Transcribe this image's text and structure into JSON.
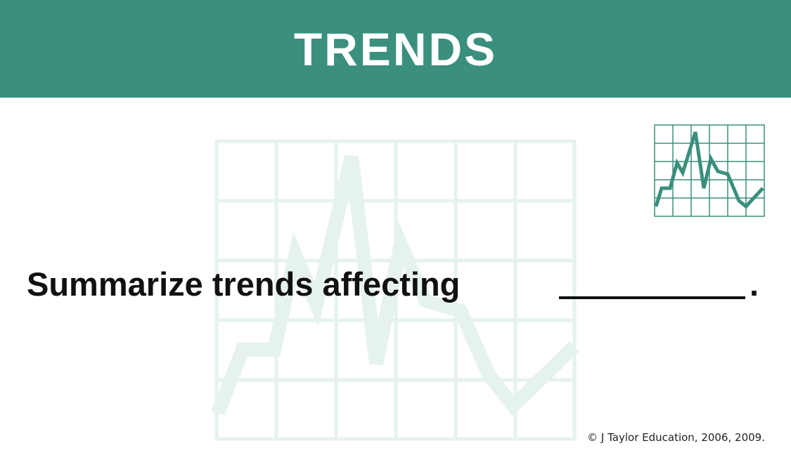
{
  "header": {
    "title": "TRENDS",
    "background_color": "#3a8f7d",
    "text_color": "#ffffff"
  },
  "decorations": {
    "watermark_icon": "line-chart-watermark-icon",
    "watermark_color": "#e6f2ee",
    "chart_icon": "line-chart-icon",
    "chart_icon_color": "#3a8f7d"
  },
  "prompt": {
    "text": "Summarize trends affecting",
    "end_punctuation": "."
  },
  "footer": {
    "copyright": "© J Taylor Education, 2006, 2009."
  }
}
